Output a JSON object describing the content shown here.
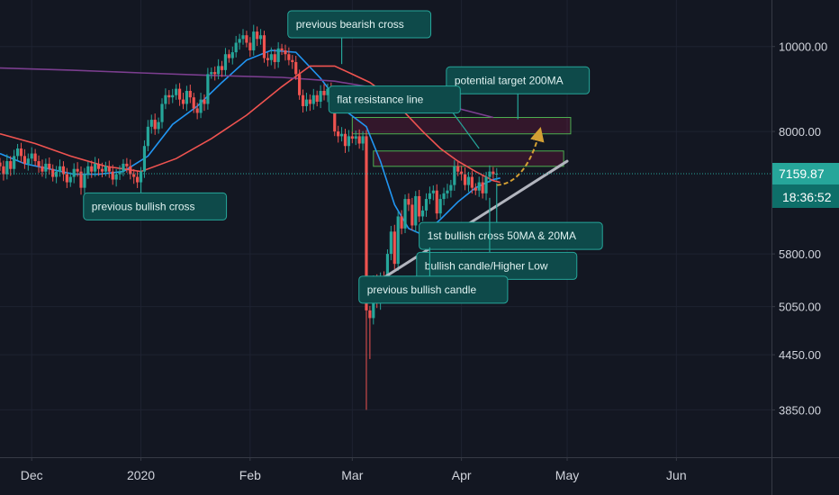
{
  "chart_data": {
    "type": "candlestick",
    "x_axis": {
      "labels": [
        {
          "date": "2019-12-01",
          "text": "Dec"
        },
        {
          "date": "2020-01-01",
          "text": "2020"
        },
        {
          "date": "2020-02-01",
          "text": "Feb"
        },
        {
          "date": "2020-03-01",
          "text": "Mar"
        },
        {
          "date": "2020-04-01",
          "text": "Apr"
        },
        {
          "date": "2020-05-01",
          "text": "May"
        },
        {
          "date": "2020-06-01",
          "text": "Jun"
        }
      ],
      "range": [
        "2019-11-22",
        "2020-06-28"
      ]
    },
    "y_axis": {
      "scale": "log",
      "range": [
        3400,
        11300
      ],
      "ticks": [
        {
          "value": 10000,
          "text": "10000.00"
        },
        {
          "value": 8000,
          "text": "8000.00"
        },
        {
          "value": 5800,
          "text": "5800.00"
        },
        {
          "value": 5050,
          "text": "5050.00"
        },
        {
          "value": 4450,
          "text": "4450.00"
        },
        {
          "value": 3850,
          "text": "3850.00"
        }
      ]
    },
    "current_price": {
      "value": 7159.87,
      "text": "7159.87",
      "countdown": "18:36:52",
      "color": "#26a69a"
    },
    "candles": {
      "start_date": "2019-11-22",
      "closes": [
        7300,
        7150,
        7400,
        7250,
        7500,
        7650,
        7500,
        7350,
        7450,
        7550,
        7400,
        7300,
        7200,
        7350,
        7250,
        7100,
        7200,
        7300,
        7150,
        7000,
        7100,
        7250,
        7200,
        6900,
        7150,
        7300,
        7200,
        7350,
        7250,
        7200,
        7300,
        7200,
        7050,
        7150,
        7200,
        7350,
        7300,
        7150,
        7100,
        7000,
        7200,
        7700,
        8100,
        8250,
        8050,
        8200,
        8600,
        8800,
        8750,
        8800,
        8950,
        8700,
        8600,
        8900,
        8750,
        8500,
        8400,
        8700,
        8600,
        9300,
        9350,
        9300,
        9500,
        9400,
        9800,
        9700,
        9850,
        10100,
        10200,
        10300,
        10100,
        9900,
        10400,
        10200,
        10300,
        9700,
        9650,
        9800,
        9600,
        9950,
        9900,
        9800,
        9650,
        9600,
        9300,
        8800,
        8550,
        8700,
        8600,
        8800,
        8650,
        8900,
        8800,
        8950,
        8700,
        8000,
        7900,
        7950,
        7700,
        7900,
        7850,
        7900,
        7750,
        7900,
        5000,
        4900,
        5400,
        5100,
        5450,
        5200,
        5800,
        6150,
        5650,
        6400,
        6200,
        6700,
        6600,
        6250,
        6750,
        6400,
        6500,
        6700,
        6800,
        6850,
        6450,
        6700,
        6800,
        6850,
        6950,
        7300,
        7200,
        7150,
        6950,
        7100,
        6900,
        6850,
        7000,
        6800,
        7100,
        7200,
        7150,
        7159.87
      ]
    },
    "moving_averages": [
      {
        "name": "20MA",
        "color": "#2196f3",
        "points": [
          [
            0,
            7550
          ],
          [
            7,
            7350
          ],
          [
            14,
            7250
          ],
          [
            21,
            7150
          ],
          [
            28,
            7150
          ],
          [
            35,
            7200
          ],
          [
            42,
            7500
          ],
          [
            49,
            8150
          ],
          [
            56,
            8550
          ],
          [
            63,
            9100
          ],
          [
            70,
            9650
          ],
          [
            77,
            9900
          ],
          [
            84,
            9850
          ],
          [
            91,
            9200
          ],
          [
            98,
            8450
          ],
          [
            104,
            8100
          ],
          [
            108,
            7400
          ],
          [
            112,
            6600
          ],
          [
            116,
            6200
          ],
          [
            120,
            6100
          ],
          [
            125,
            6350
          ],
          [
            130,
            6650
          ],
          [
            135,
            6900
          ],
          [
            140,
            7050
          ],
          [
            142,
            7080
          ]
        ]
      },
      {
        "name": "50MA",
        "color": "#ef5350",
        "points": [
          [
            0,
            7950
          ],
          [
            10,
            7750
          ],
          [
            20,
            7500
          ],
          [
            30,
            7300
          ],
          [
            40,
            7200
          ],
          [
            50,
            7450
          ],
          [
            60,
            7850
          ],
          [
            70,
            8350
          ],
          [
            80,
            9000
          ],
          [
            88,
            9500
          ],
          [
            95,
            9500
          ],
          [
            100,
            9300
          ],
          [
            105,
            9100
          ],
          [
            110,
            8800
          ],
          [
            115,
            8400
          ],
          [
            120,
            8000
          ],
          [
            125,
            7650
          ],
          [
            130,
            7400
          ],
          [
            135,
            7200
          ],
          [
            140,
            7030
          ],
          [
            142,
            7000
          ]
        ]
      },
      {
        "name": "200MA",
        "color": "#7b3e8f",
        "points": [
          [
            0,
            9450
          ],
          [
            20,
            9400
          ],
          [
            40,
            9330
          ],
          [
            60,
            9270
          ],
          [
            80,
            9220
          ],
          [
            95,
            9130
          ],
          [
            110,
            8920
          ],
          [
            125,
            8600
          ],
          [
            140,
            8300
          ]
        ]
      }
    ],
    "resistance_zones": [
      {
        "low": 7950,
        "high": 8300,
        "start_idx": 100,
        "end_idx": 162
      },
      {
        "low": 7300,
        "high": 7600,
        "start_idx": 106,
        "end_idx": 160
      }
    ],
    "support_line": {
      "from": [
        109,
        5450
      ],
      "to": [
        161,
        7400
      ],
      "color": "#b2b5be"
    },
    "dotted_price_line": {
      "value": 7159.87
    },
    "projection_arrow": {
      "points": [
        [
          141,
          6950
        ],
        [
          147,
          6960
        ],
        [
          151,
          7400
        ],
        [
          153,
          7950
        ]
      ],
      "color": "#d4a034"
    },
    "annotations": [
      {
        "text": "previous bearish cross",
        "box_idx": 102,
        "box_value": 10600,
        "anchor": [
          97,
          9550
        ]
      },
      {
        "text": "potential target 200MA",
        "box_idx": 147,
        "box_value": 9150,
        "anchor": [
          147,
          8260
        ]
      },
      {
        "text": "flat resistance line",
        "box_idx": 112,
        "box_value": 8700,
        "anchor": [
          136,
          7650
        ]
      },
      {
        "text": "previous bullish cross",
        "box_idx": 44,
        "box_value": 6570,
        "anchor": [
          40,
          7050
        ]
      },
      {
        "text": "1st bullish cross 50MA & 20MA",
        "box_idx": 145,
        "box_value": 6080,
        "anchor": [
          141,
          6980
        ]
      },
      {
        "text": "bullish candle/Higher Low",
        "box_idx": 141,
        "box_value": 5620,
        "anchor": [
          139,
          6720
        ]
      },
      {
        "text": "previous bullish candle",
        "box_idx": 123,
        "box_value": 5280,
        "anchor": [
          122,
          5900
        ]
      }
    ]
  }
}
